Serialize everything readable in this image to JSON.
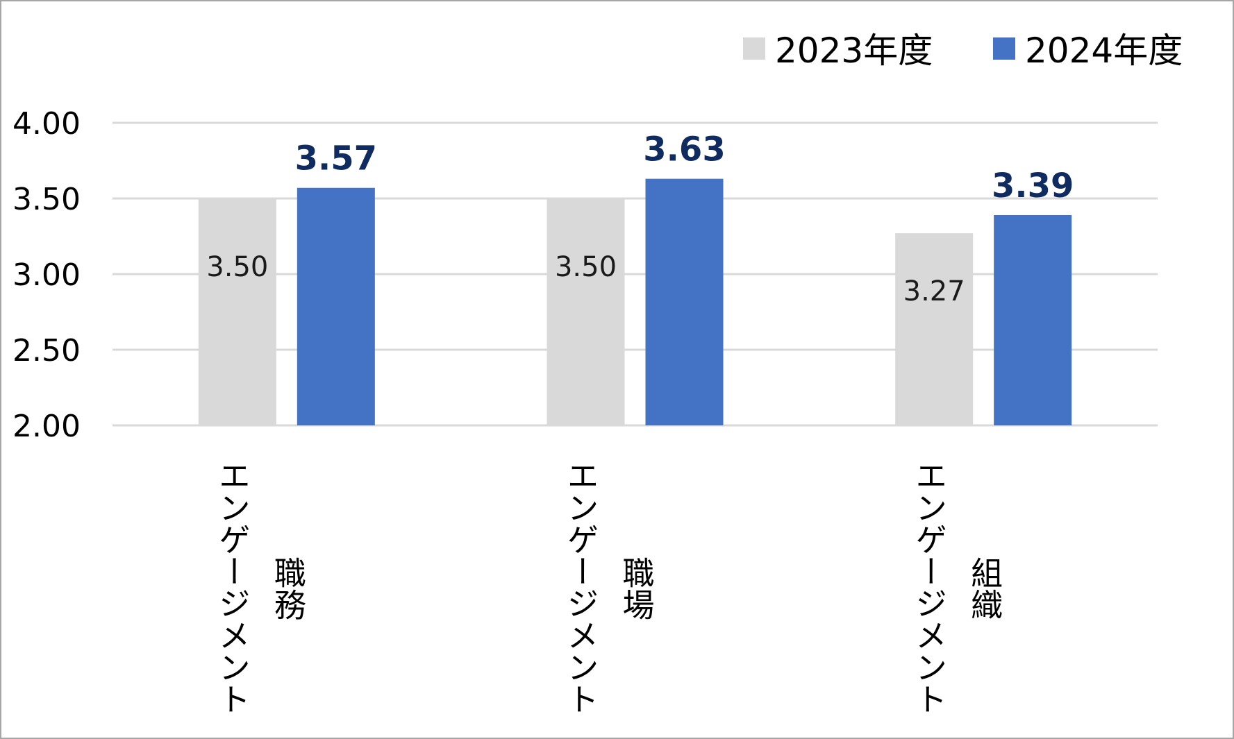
{
  "chart_data": {
    "type": "bar",
    "title": "",
    "xlabel": "",
    "ylabel": "",
    "ylim": [
      2.0,
      4.0
    ],
    "yticks": [
      "4.00",
      "3.50",
      "3.00",
      "2.50",
      "2.00"
    ],
    "grid": true,
    "legend_position": "top-right",
    "categories": [
      {
        "label_main": "エンゲージメント",
        "label_sub": "職務"
      },
      {
        "label_main": "エンゲージメント",
        "label_sub": "職場"
      },
      {
        "label_main": "エンゲージメント",
        "label_sub": "組織"
      }
    ],
    "series": [
      {
        "name": "2023年度",
        "color": "#d9d9d9",
        "values": [
          3.5,
          3.5,
          3.27
        ],
        "labels": [
          "3.50",
          "3.50",
          "3.27"
        ]
      },
      {
        "name": "2024年度",
        "color": "#4472c4",
        "values": [
          3.57,
          3.63,
          3.39
        ],
        "labels": [
          "3.57",
          "3.63",
          "3.39"
        ]
      }
    ]
  }
}
